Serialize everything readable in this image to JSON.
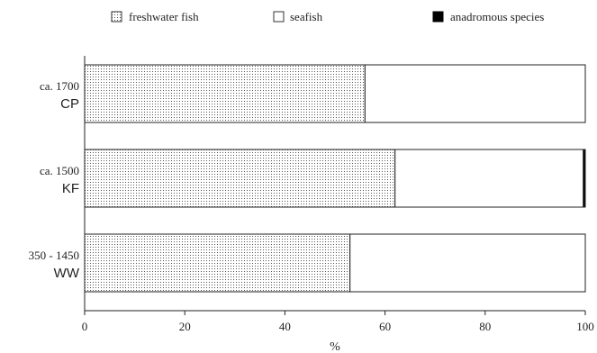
{
  "chart_data": {
    "type": "bar",
    "orientation": "horizontal",
    "stacked": true,
    "categories": [
      {
        "period": "ca. 1700",
        "site": "CP"
      },
      {
        "period": "ca. 1500",
        "site": "KF"
      },
      {
        "period": "350 - 1450",
        "site": "WW"
      }
    ],
    "series": [
      {
        "name": "freshwater fish",
        "values": [
          56,
          62,
          53
        ],
        "pattern": "dotted",
        "color": "#ffffff"
      },
      {
        "name": "seafish",
        "values": [
          44,
          37.6,
          47
        ],
        "pattern": "none",
        "color": "#ffffff"
      },
      {
        "name": "anadromous species",
        "values": [
          0,
          0.4,
          0
        ],
        "pattern": "solid",
        "color": "#000000"
      }
    ],
    "xlabel": "%",
    "xlim": [
      0,
      100
    ],
    "xticks": [
      "0",
      "20",
      "40",
      "60",
      "80",
      "100"
    ],
    "grid": false,
    "legend_position": "top"
  }
}
